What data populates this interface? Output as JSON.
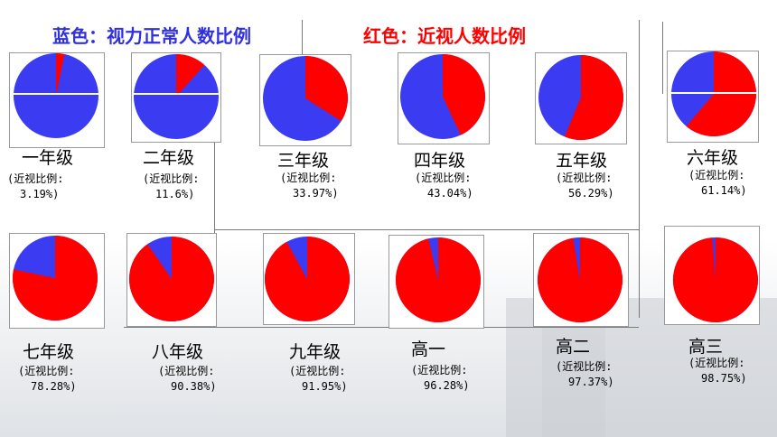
{
  "legend": {
    "blue": "蓝色：视力正常人数比例",
    "red": "红色：近视人数比例"
  },
  "colors": {
    "normal": "#3b3bf2",
    "myopia": "#ff0000"
  },
  "chart_data": {
    "type": "pie",
    "categories": [
      "一年级",
      "二年级",
      "三年级",
      "四年级",
      "五年级",
      "六年级",
      "七年级",
      "八年级",
      "九年级",
      "高一",
      "高二",
      "高三"
    ],
    "series": [
      {
        "name": "近视人数比例",
        "values": [
          3.19,
          11.6,
          33.97,
          43.04,
          56.29,
          61.14,
          78.28,
          90.38,
          91.95,
          96.28,
          97.37,
          98.75
        ]
      },
      {
        "name": "视力正常人数比例",
        "values": [
          96.81,
          88.4,
          66.03,
          56.96,
          43.71,
          38.86,
          21.72,
          9.62,
          8.05,
          3.72,
          2.63,
          1.25
        ]
      }
    ],
    "ratio_prefix": "(近视比例:",
    "ratio_text": [
      "3.19%)",
      "11.6%)",
      "33.97%)",
      "43.04%)",
      "56.29%)",
      "61.14%)",
      "78.28%)",
      "90.38%)",
      "91.95%)",
      "96.28%)",
      "97.37%)",
      "98.75%)"
    ]
  }
}
